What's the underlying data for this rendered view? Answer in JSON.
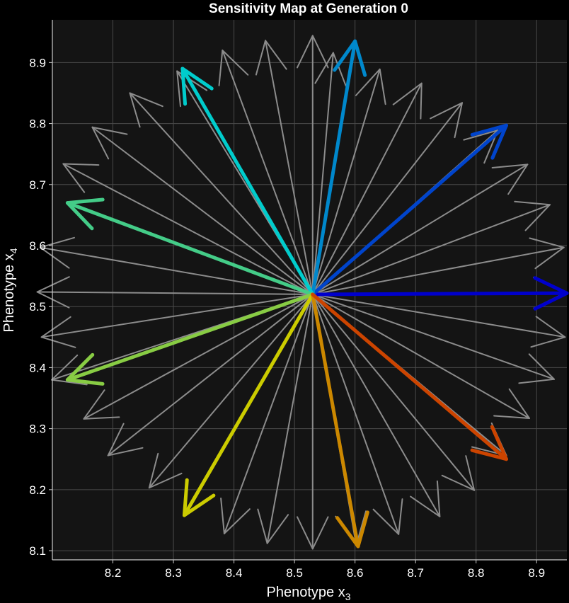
{
  "chart_data": {
    "type": "quiver",
    "title": "Sensitivity Map at Generation 0",
    "xlabel": "Phenotype x",
    "xlabel_sub": "3",
    "ylabel": "Phenotype x",
    "ylabel_sub": "4",
    "xlim": [
      8.1,
      8.95
    ],
    "ylim": [
      8.085,
      8.97
    ],
    "xticks": [
      8.2,
      8.3,
      8.4,
      8.5,
      8.6,
      8.7,
      8.8,
      8.9
    ],
    "yticks": [
      8.1,
      8.2,
      8.3,
      8.4,
      8.5,
      8.6,
      8.7,
      8.8,
      8.9
    ],
    "tick_labels_x": [
      "8.2",
      "8.3",
      "8.4",
      "8.5",
      "8.6",
      "8.7",
      "8.8",
      "8.9"
    ],
    "tick_labels_y": [
      "8.1",
      "8.2",
      "8.3",
      "8.4",
      "8.5",
      "8.6",
      "8.7",
      "8.8",
      "8.9"
    ],
    "grid": true,
    "origin": [
      8.53,
      8.52
    ],
    "background_arrows": {
      "color": "#8c8c8c",
      "tips": [
        [
          8.948,
          8.523
        ],
        [
          8.945,
          8.597
        ],
        [
          8.922,
          8.667
        ],
        [
          8.885,
          8.733
        ],
        [
          8.836,
          8.789
        ],
        [
          8.777,
          8.834
        ],
        [
          8.71,
          8.866
        ],
        [
          8.641,
          8.889
        ],
        [
          8.564,
          8.916
        ],
        [
          8.53,
          8.944
        ],
        [
          8.452,
          8.936
        ],
        [
          8.381,
          8.92
        ],
        [
          8.306,
          8.886
        ],
        [
          8.228,
          8.85
        ],
        [
          8.166,
          8.794
        ],
        [
          8.118,
          8.734
        ],
        [
          8.08,
          8.597
        ],
        [
          8.075,
          8.524
        ],
        [
          8.082,
          8.45
        ],
        [
          8.099,
          8.38
        ],
        [
          8.152,
          8.316
        ],
        [
          8.192,
          8.256
        ],
        [
          8.26,
          8.203
        ],
        [
          8.384,
          8.128
        ],
        [
          8.455,
          8.112
        ],
        [
          8.53,
          8.103
        ],
        [
          8.602,
          8.109
        ],
        [
          8.672,
          8.127
        ],
        [
          8.74,
          8.156
        ],
        [
          8.797,
          8.199
        ],
        [
          8.85,
          8.256
        ],
        [
          8.888,
          8.317
        ],
        [
          8.929,
          8.381
        ],
        [
          8.947,
          8.45
        ]
      ]
    },
    "highlight_arrows": [
      {
        "tip": [
          8.95,
          8.522
        ],
        "color": "#0000cc"
      },
      {
        "tip": [
          8.85,
          8.797
        ],
        "color": "#0044cc"
      },
      {
        "tip": [
          8.6,
          8.935
        ],
        "color": "#0088cc"
      },
      {
        "tip": [
          8.315,
          8.89
        ],
        "color": "#00cccc"
      },
      {
        "tip": [
          8.125,
          8.67
        ],
        "color": "#44cc88"
      },
      {
        "tip": [
          8.125,
          8.38
        ],
        "color": "#88cc44"
      },
      {
        "tip": [
          8.318,
          8.158
        ],
        "color": "#cccc00"
      },
      {
        "tip": [
          8.605,
          8.107
        ],
        "color": "#cc8800"
      },
      {
        "tip": [
          8.85,
          8.25
        ],
        "color": "#cc4400"
      }
    ]
  },
  "colors": {
    "background": "#000000",
    "plot_background": "#141414",
    "grid": "#4a4a4a",
    "axis": "#cccccc",
    "text": "#ffffff"
  }
}
